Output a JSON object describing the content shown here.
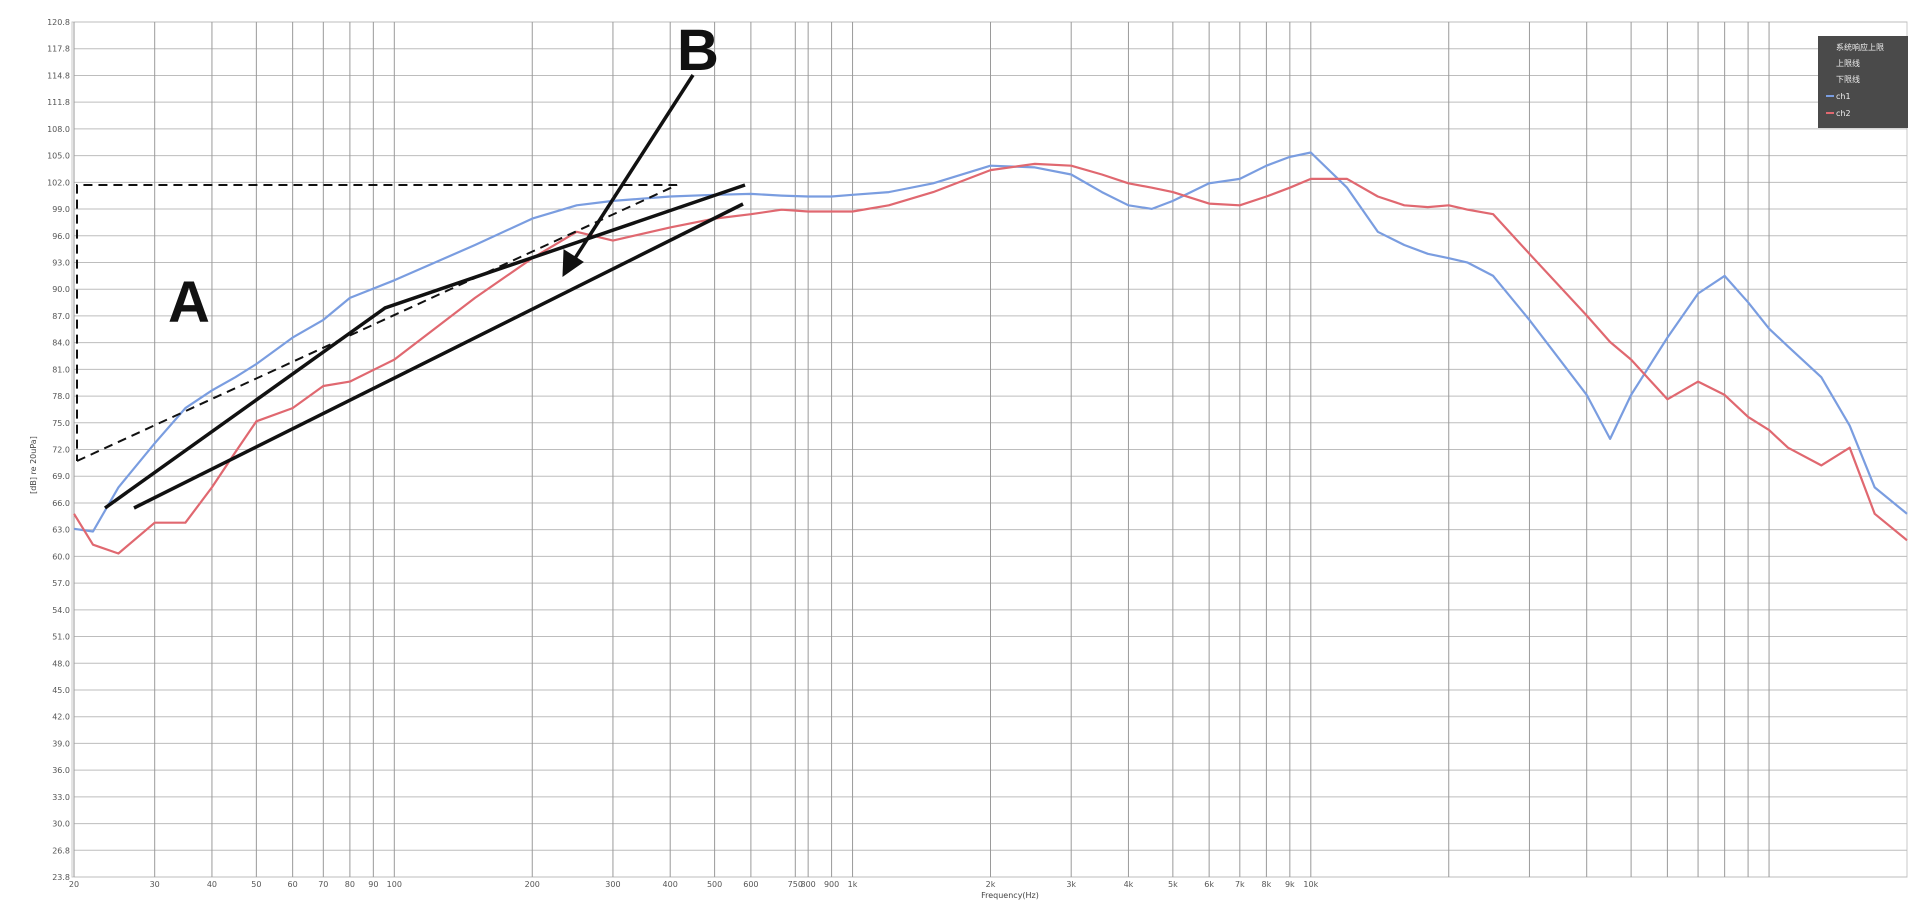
{
  "chart_data": {
    "type": "line",
    "xscale": "log",
    "xlim": [
      20,
      200000
    ],
    "ylim": [
      23.8,
      120.8
    ],
    "grid": true,
    "xlabel": "Frequency(Hz)",
    "ylabel": "[dB] re 20uPa]",
    "y_ticks": [
      "23.8",
      "26.8",
      "30.0",
      "33.0",
      "36.0",
      "39.0",
      "42.0",
      "45.0",
      "48.0",
      "51.0",
      "54.0",
      "57.0",
      "60.0",
      "63.0",
      "66.0",
      "69.0",
      "72.0",
      "75.0",
      "78.0",
      "81.0",
      "84.0",
      "87.0",
      "90.0",
      "93.0",
      "96.0",
      "99.0",
      "102.0",
      "105.0",
      "108.0",
      "111.8",
      "114.8",
      "117.8",
      "120.8"
    ],
    "x_ticks": [
      {
        "v": 20,
        "label": "20"
      },
      {
        "v": 30,
        "label": "30"
      },
      {
        "v": 40,
        "label": "40"
      },
      {
        "v": 50,
        "label": "50"
      },
      {
        "v": 60,
        "label": "60"
      },
      {
        "v": 70,
        "label": "70"
      },
      {
        "v": 80,
        "label": "80"
      },
      {
        "v": 90,
        "label": "90"
      },
      {
        "v": 100,
        "label": "100"
      },
      {
        "v": 200,
        "label": "200"
      },
      {
        "v": 300,
        "label": "300"
      },
      {
        "v": 400,
        "label": "400"
      },
      {
        "v": 500,
        "label": "500"
      },
      {
        "v": 600,
        "label": "600"
      },
      {
        "v": 750,
        "label": "750"
      },
      {
        "v": 800,
        "label": "800"
      },
      {
        "v": 900,
        "label": "900"
      },
      {
        "v": 1000,
        "label": "1k"
      },
      {
        "v": 2000,
        "label": "2k"
      },
      {
        "v": 3000,
        "label": "3k"
      },
      {
        "v": 4000,
        "label": "4k"
      },
      {
        "v": 5000,
        "label": "5k"
      },
      {
        "v": 6000,
        "label": "6k"
      },
      {
        "v": 7000,
        "label": "7k"
      },
      {
        "v": 8000,
        "label": "8k"
      },
      {
        "v": 9000,
        "label": "9k"
      },
      {
        "v": 10000,
        "label": "10k"
      },
      {
        "v": 20000,
        "label": ""
      },
      {
        "v": 30000,
        "label": ""
      },
      {
        "v": 40000,
        "label": ""
      },
      {
        "v": 50000,
        "label": ""
      },
      {
        "v": 60000,
        "label": ""
      },
      {
        "v": 70000,
        "label": ""
      },
      {
        "v": 80000,
        "label": ""
      },
      {
        "v": 90000,
        "label": ""
      },
      {
        "v": 100000,
        "label": ""
      }
    ],
    "series": [
      {
        "name": "ch1",
        "color": "#7a9de0",
        "x": [
          20,
          22,
          25,
          30,
          35,
          40,
          45,
          50,
          60,
          70,
          80,
          100,
          150,
          200,
          250,
          300,
          400,
          500,
          600,
          700,
          800,
          900,
          1000,
          1200,
          1500,
          2000,
          2500,
          3000,
          3500,
          4000,
          4500,
          5000,
          6000,
          7000,
          8000,
          9000,
          10000,
          12000,
          14000,
          16000,
          18000,
          20000,
          22000,
          25000,
          30000,
          40000,
          45000,
          50000,
          60000,
          70000,
          80000,
          90000,
          100000,
          110000,
          130000,
          150000,
          170000,
          200000
        ],
        "y": [
          63.3,
          63.0,
          68.0,
          73.0,
          77.0,
          79.0,
          80.5,
          82.0,
          85.0,
          87.0,
          89.5,
          91.5,
          95.5,
          98.5,
          100.0,
          100.5,
          101.0,
          101.2,
          101.3,
          101.1,
          101.0,
          101.0,
          101.2,
          101.5,
          102.5,
          104.5,
          104.3,
          103.5,
          101.5,
          100.0,
          99.6,
          100.5,
          102.5,
          103.0,
          104.5,
          105.5,
          106.0,
          102.0,
          97.0,
          95.5,
          94.5,
          94.0,
          93.5,
          92.0,
          87.0,
          78.5,
          73.5,
          78.5,
          85.0,
          90.0,
          92.0,
          89.0,
          86.0,
          84.0,
          80.5,
          75.0,
          68.0,
          65.0
        ]
      },
      {
        "name": "ch2",
        "color": "#e06870",
        "x": [
          20,
          22,
          25,
          30,
          35,
          40,
          45,
          50,
          60,
          70,
          80,
          100,
          150,
          200,
          250,
          300,
          400,
          500,
          600,
          700,
          800,
          900,
          1000,
          1200,
          1500,
          2000,
          2500,
          3000,
          3500,
          4000,
          4500,
          5000,
          6000,
          7000,
          8000,
          9000,
          10000,
          12000,
          14000,
          16000,
          18000,
          20000,
          22000,
          25000,
          30000,
          40000,
          45000,
          50000,
          60000,
          70000,
          80000,
          90000,
          100000,
          110000,
          130000,
          150000,
          170000,
          200000
        ],
        "y": [
          65.0,
          61.5,
          60.5,
          64.0,
          64.0,
          68.0,
          72.0,
          75.5,
          77.0,
          79.5,
          80.0,
          82.5,
          89.5,
          94.0,
          97.0,
          96.0,
          97.5,
          98.5,
          99.0,
          99.5,
          99.3,
          99.3,
          99.3,
          100.0,
          101.5,
          104.0,
          104.7,
          104.5,
          103.5,
          102.5,
          102.0,
          101.5,
          100.2,
          100.0,
          101.0,
          102.0,
          103.0,
          103.0,
          101.0,
          100.0,
          99.8,
          100.0,
          99.5,
          99.0,
          94.5,
          87.5,
          84.5,
          82.5,
          78.0,
          80.0,
          78.5,
          76.0,
          74.5,
          72.5,
          70.5,
          72.5,
          65.0,
          62.0
        ]
      }
    ],
    "legend": {
      "position": "top-right",
      "entries": [
        "系统响应上限",
        "上限线",
        "下限线",
        "ch1",
        "ch2"
      ]
    },
    "annotations": [
      {
        "text": "A"
      },
      {
        "text": "B"
      }
    ]
  }
}
